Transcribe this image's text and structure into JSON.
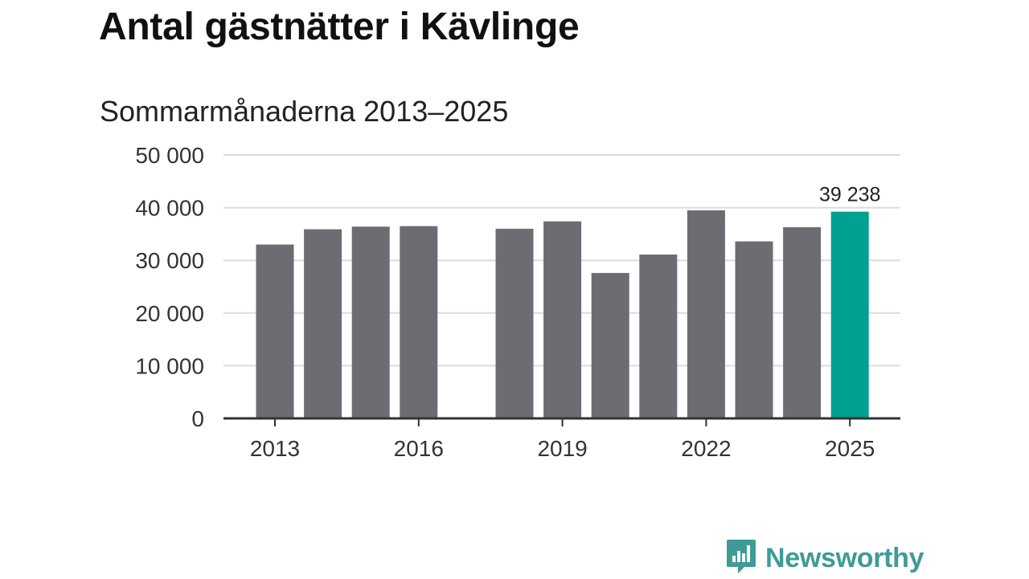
{
  "header": {
    "title": "Antal gästnätter i Kävlinge",
    "subtitle": "Sommarmånaderna 2013–2025"
  },
  "chart_data": {
    "type": "bar",
    "categories": [
      "2013",
      "2014",
      "2015",
      "2016",
      "2017",
      "2018",
      "2019",
      "2020",
      "2021",
      "2022",
      "2023",
      "2024",
      "2025"
    ],
    "values": [
      33000,
      35900,
      36400,
      36500,
      null,
      36000,
      37400,
      27600,
      31100,
      39500,
      33600,
      36300,
      39238
    ],
    "x_tick_labels": [
      "2013",
      "2016",
      "2019",
      "2022",
      "2025"
    ],
    "y_ticks": [
      0,
      10000,
      20000,
      30000,
      40000,
      50000
    ],
    "y_tick_labels": [
      "0",
      "10 000",
      "20 000",
      "30 000",
      "40 000",
      "50 000"
    ],
    "ylim": [
      0,
      50000
    ],
    "highlight_category": "2025",
    "highlight_label": "39 238",
    "bar_color": "#6d6c72",
    "highlight_color": "#00a092",
    "grid": true,
    "xlabel": "",
    "ylabel": ""
  },
  "branding": {
    "logo_text": "Newsworthy",
    "logo_icon": "bar-chart-speech-bubble-icon",
    "logo_color": "#3f9b97"
  }
}
